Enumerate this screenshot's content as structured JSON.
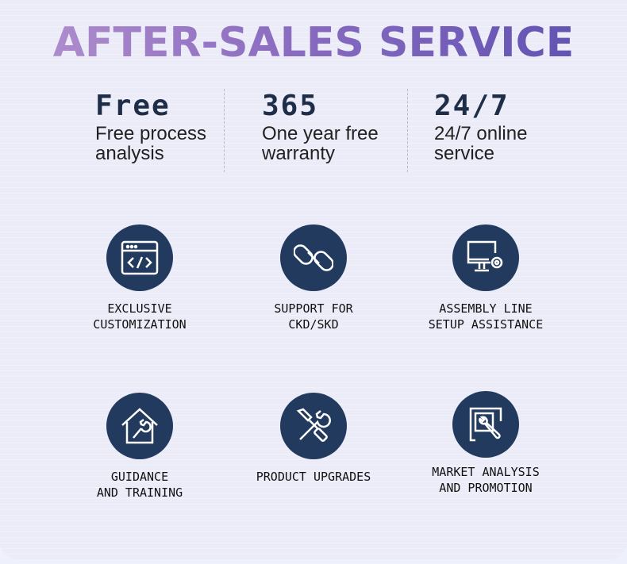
{
  "title": "AFTER-SALES SERVICE",
  "stats": [
    {
      "big": "Free",
      "line1": "Free process",
      "line2": "analysis"
    },
    {
      "big": "365",
      "line1": "One year free",
      "line2": "warranty"
    },
    {
      "big": "24/7",
      "line1": "24/7 online",
      "line2": "service"
    }
  ],
  "services": [
    {
      "icon": "code-window-icon",
      "line1": "EXCLUSIVE",
      "line2": "CUSTOMIZATION"
    },
    {
      "icon": "chain-link-icon",
      "line1": "SUPPORT FOR",
      "line2": "CKD/SKD"
    },
    {
      "icon": "monitor-gear-icon",
      "line1": "ASSEMBLY LINE",
      "line2": "SETUP ASSISTANCE"
    },
    {
      "icon": "house-wrench-icon",
      "line1": "GUIDANCE",
      "line2": "AND TRAINING"
    },
    {
      "icon": "tools-icon",
      "line1": "PRODUCT UPGRADES",
      "line2": ""
    },
    {
      "icon": "frame-wrench-icon",
      "line1": "MARKET ANALYSIS",
      "line2": "AND PROMOTION"
    }
  ],
  "colors": {
    "circle": "#213a5e",
    "title_start": "#b592cf",
    "title_end": "#5b4fb0",
    "background": "#ebecf8"
  }
}
